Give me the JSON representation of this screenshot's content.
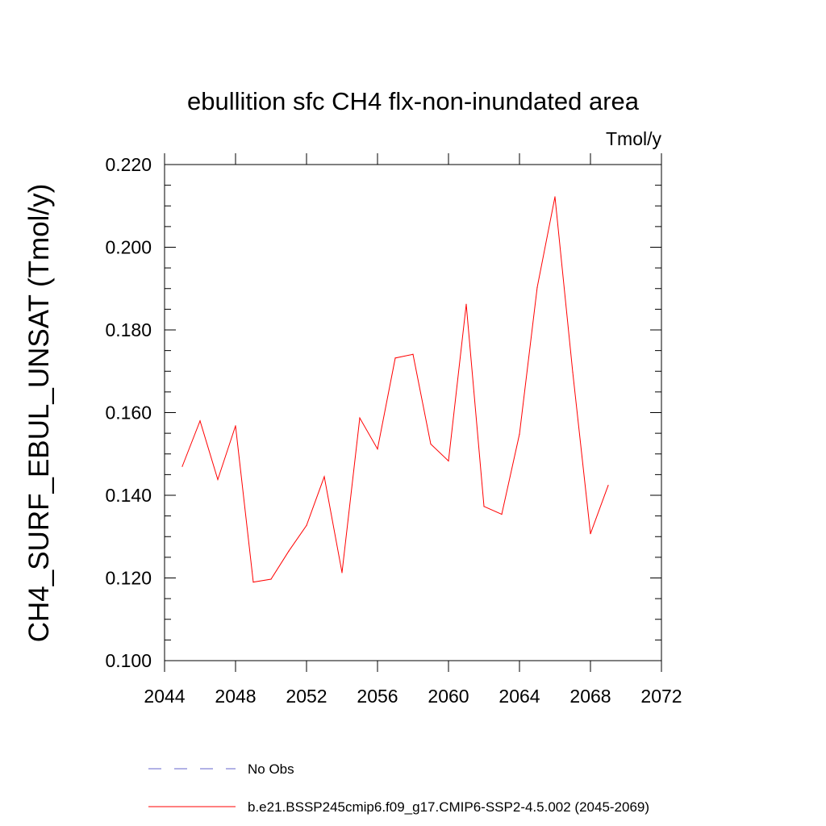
{
  "chart_data": {
    "type": "line",
    "title": "ebullition sfc CH4 flx-non-inundated area",
    "units_label": "Tmol/y",
    "xlabel": "",
    "ylabel": "CH4_SURF_EBUL_UNSAT  (Tmol/y)",
    "xlim": [
      2044,
      2072
    ],
    "ylim": [
      0.1,
      0.22
    ],
    "x_ticks": [
      "2044",
      "2048",
      "2052",
      "2056",
      "2060",
      "2064",
      "2068",
      "2072"
    ],
    "y_ticks": [
      "0.100",
      "0.120",
      "0.140",
      "0.160",
      "0.180",
      "0.200",
      "0.220"
    ],
    "grid": false,
    "legend_position": "bottom",
    "series": [
      {
        "name": "b.e21.BSSP245cmip6.f09_g17.CMIP6-SSP2-4.5.002 (2045-2069)",
        "color": "#ff0000",
        "dash": "solid",
        "x": [
          2045,
          2046,
          2047,
          2048,
          2049,
          2050,
          2051,
          2052,
          2053,
          2054,
          2055,
          2056,
          2057,
          2058,
          2059,
          2060,
          2061,
          2062,
          2063,
          2064,
          2065,
          2066,
          2067,
          2068,
          2069
        ],
        "values": [
          0.147,
          0.158,
          0.1438,
          0.1568,
          0.119,
          0.1197,
          0.1265,
          0.1327,
          0.1445,
          0.1213,
          0.1587,
          0.1512,
          0.1732,
          0.1741,
          0.1524,
          0.1483,
          0.1862,
          0.1373,
          0.1354,
          0.1548,
          0.1903,
          0.2122,
          0.1698,
          0.1307,
          0.1424
        ]
      }
    ],
    "legend": [
      {
        "label": "No Obs",
        "color": "#6666cc",
        "dash": "dashed"
      },
      {
        "label": "b.e21.BSSP245cmip6.f09_g17.CMIP6-SSP2-4.5.002 (2045-2069)",
        "color": "#ff0000",
        "dash": "solid"
      }
    ]
  }
}
